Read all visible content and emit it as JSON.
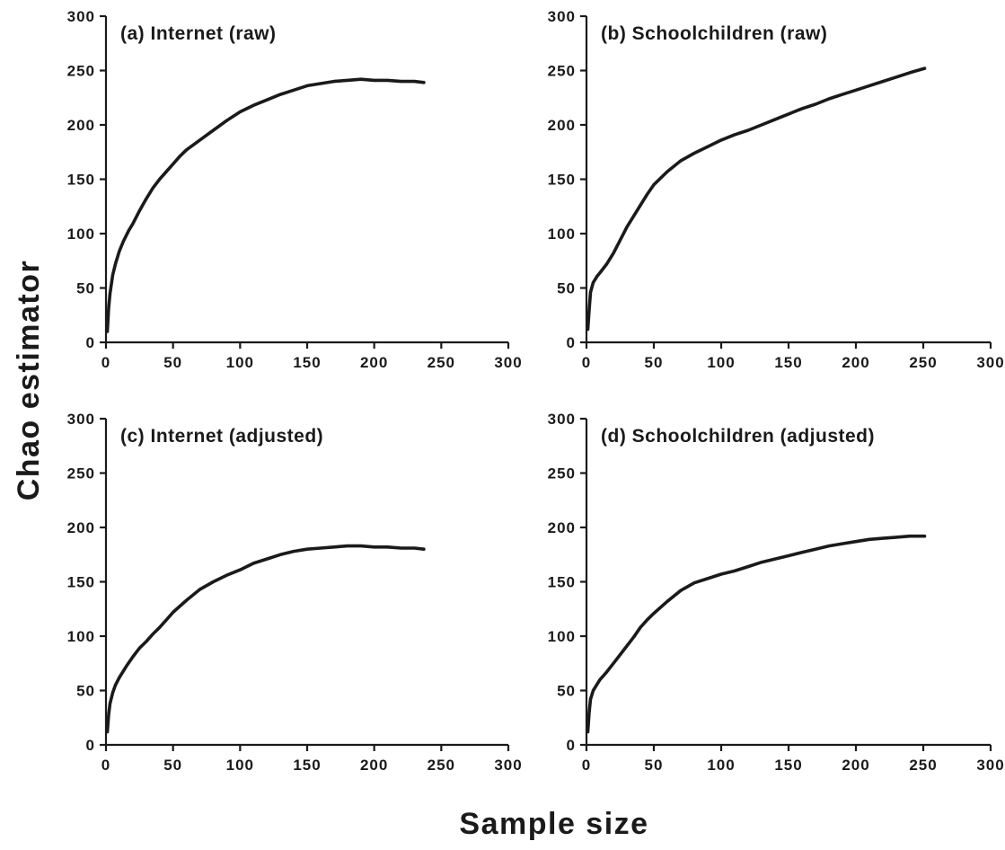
{
  "figure": {
    "ylabel": "Chao estimator",
    "xlabel": "Sample size",
    "line_color": "#1a1a1a"
  },
  "chart_data": [
    {
      "type": "line",
      "title": "(a) Internet (raw)",
      "xlabel": "",
      "ylabel": "",
      "xlim": [
        0,
        300
      ],
      "ylim": [
        0,
        300
      ],
      "xticks": [
        0,
        50,
        100,
        150,
        200,
        250,
        300
      ],
      "yticks": [
        0,
        50,
        100,
        150,
        200,
        250,
        300
      ],
      "grid": false,
      "series": [
        {
          "x": [
            1,
            2,
            3,
            5,
            7,
            10,
            13,
            17,
            20,
            25,
            30,
            35,
            40,
            45,
            50,
            55,
            60,
            70,
            80,
            90,
            100,
            110,
            120,
            130,
            140,
            150,
            160,
            170,
            180,
            190,
            200,
            210,
            220,
            230,
            237
          ],
          "y": [
            10,
            32,
            45,
            62,
            72,
            84,
            93,
            103,
            109,
            121,
            132,
            142,
            150,
            157,
            164,
            171,
            177,
            186,
            195,
            204,
            212,
            218,
            223,
            228,
            232,
            236,
            238,
            240,
            241,
            242,
            241,
            241,
            240,
            240,
            239
          ]
        }
      ]
    },
    {
      "type": "line",
      "title": "(b) Schoolchildren (raw)",
      "xlabel": "",
      "ylabel": "",
      "xlim": [
        0,
        300
      ],
      "ylim": [
        0,
        300
      ],
      "xticks": [
        0,
        50,
        100,
        150,
        200,
        250,
        300
      ],
      "yticks": [
        0,
        50,
        100,
        150,
        200,
        250,
        300
      ],
      "grid": false,
      "series": [
        {
          "x": [
            1,
            2,
            3,
            5,
            8,
            10,
            15,
            20,
            25,
            30,
            35,
            40,
            45,
            50,
            60,
            70,
            80,
            90,
            100,
            110,
            120,
            130,
            140,
            150,
            160,
            170,
            180,
            190,
            200,
            210,
            220,
            230,
            240,
            251
          ],
          "y": [
            12,
            30,
            46,
            55,
            61,
            64,
            72,
            82,
            94,
            106,
            116,
            126,
            136,
            145,
            157,
            167,
            174,
            180,
            186,
            191,
            195,
            200,
            205,
            210,
            215,
            219,
            224,
            228,
            232,
            236,
            240,
            244,
            248,
            252
          ]
        }
      ]
    },
    {
      "type": "line",
      "title": "(c) Internet (adjusted)",
      "xlabel": "",
      "ylabel": "",
      "xlim": [
        0,
        300
      ],
      "ylim": [
        0,
        300
      ],
      "xticks": [
        0,
        50,
        100,
        150,
        200,
        250,
        300
      ],
      "yticks": [
        0,
        50,
        100,
        150,
        200,
        250,
        300
      ],
      "grid": false,
      "series": [
        {
          "x": [
            1,
            2,
            3,
            5,
            7,
            10,
            15,
            20,
            25,
            30,
            35,
            40,
            45,
            50,
            60,
            70,
            80,
            90,
            100,
            110,
            120,
            130,
            140,
            150,
            160,
            170,
            180,
            190,
            200,
            210,
            220,
            230,
            237
          ],
          "y": [
            12,
            28,
            38,
            48,
            55,
            62,
            72,
            81,
            89,
            95,
            102,
            108,
            115,
            122,
            133,
            143,
            150,
            156,
            161,
            167,
            171,
            175,
            178,
            180,
            181,
            182,
            183,
            183,
            182,
            182,
            181,
            181,
            180
          ]
        }
      ]
    },
    {
      "type": "line",
      "title": "(d) Schoolchildren (adjusted)",
      "xlabel": "",
      "ylabel": "",
      "xlim": [
        0,
        300
      ],
      "ylim": [
        0,
        300
      ],
      "xticks": [
        0,
        50,
        100,
        150,
        200,
        250,
        300
      ],
      "yticks": [
        0,
        50,
        100,
        150,
        200,
        250,
        300
      ],
      "grid": false,
      "series": [
        {
          "x": [
            1,
            2,
            3,
            5,
            8,
            10,
            15,
            20,
            25,
            30,
            35,
            40,
            45,
            50,
            60,
            70,
            80,
            90,
            100,
            110,
            120,
            130,
            140,
            150,
            160,
            170,
            180,
            190,
            200,
            210,
            220,
            230,
            240,
            251
          ],
          "y": [
            12,
            30,
            42,
            50,
            56,
            60,
            67,
            75,
            83,
            91,
            99,
            108,
            115,
            121,
            132,
            142,
            149,
            153,
            157,
            160,
            164,
            168,
            171,
            174,
            177,
            180,
            183,
            185,
            187,
            189,
            190,
            191,
            192,
            192
          ]
        }
      ]
    }
  ]
}
